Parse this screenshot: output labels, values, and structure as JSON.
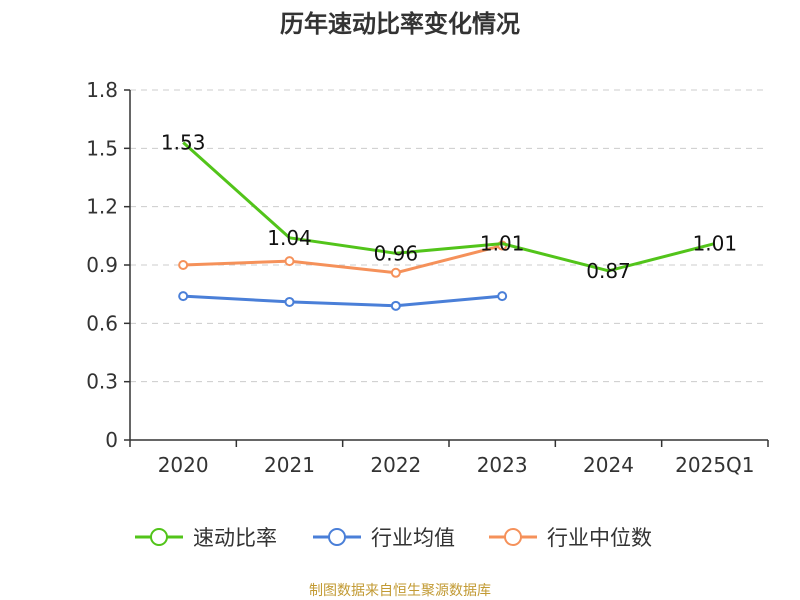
{
  "chart_data": {
    "type": "line",
    "title": "历年速动比率变化情况",
    "categories": [
      "2020",
      "2021",
      "2022",
      "2023",
      "2024",
      "2025Q1"
    ],
    "ylim": [
      0,
      1.8
    ],
    "yticks": [
      "0",
      "0.3",
      "0.6",
      "0.9",
      "1.2",
      "1.5",
      "1.8"
    ],
    "grid": true,
    "legend_position": "bottom",
    "series": [
      {
        "name": "速动比率",
        "color": "#52c41a",
        "values": [
          1.53,
          1.04,
          0.96,
          1.01,
          0.87,
          1.01
        ],
        "labels": [
          "1.53",
          "1.04",
          "0.96",
          "1.01",
          "0.87",
          "1.01"
        ],
        "markers": false
      },
      {
        "name": "行业均值",
        "color": "#4a7fd8",
        "values": [
          0.74,
          0.71,
          0.69,
          0.74,
          null,
          null
        ],
        "markers": true
      },
      {
        "name": "行业中位数",
        "color": "#f5915a",
        "values": [
          0.9,
          0.92,
          0.86,
          1.0,
          null,
          null
        ],
        "markers": true
      }
    ]
  },
  "footer": {
    "source": "制图数据来自恒生聚源数据库"
  }
}
